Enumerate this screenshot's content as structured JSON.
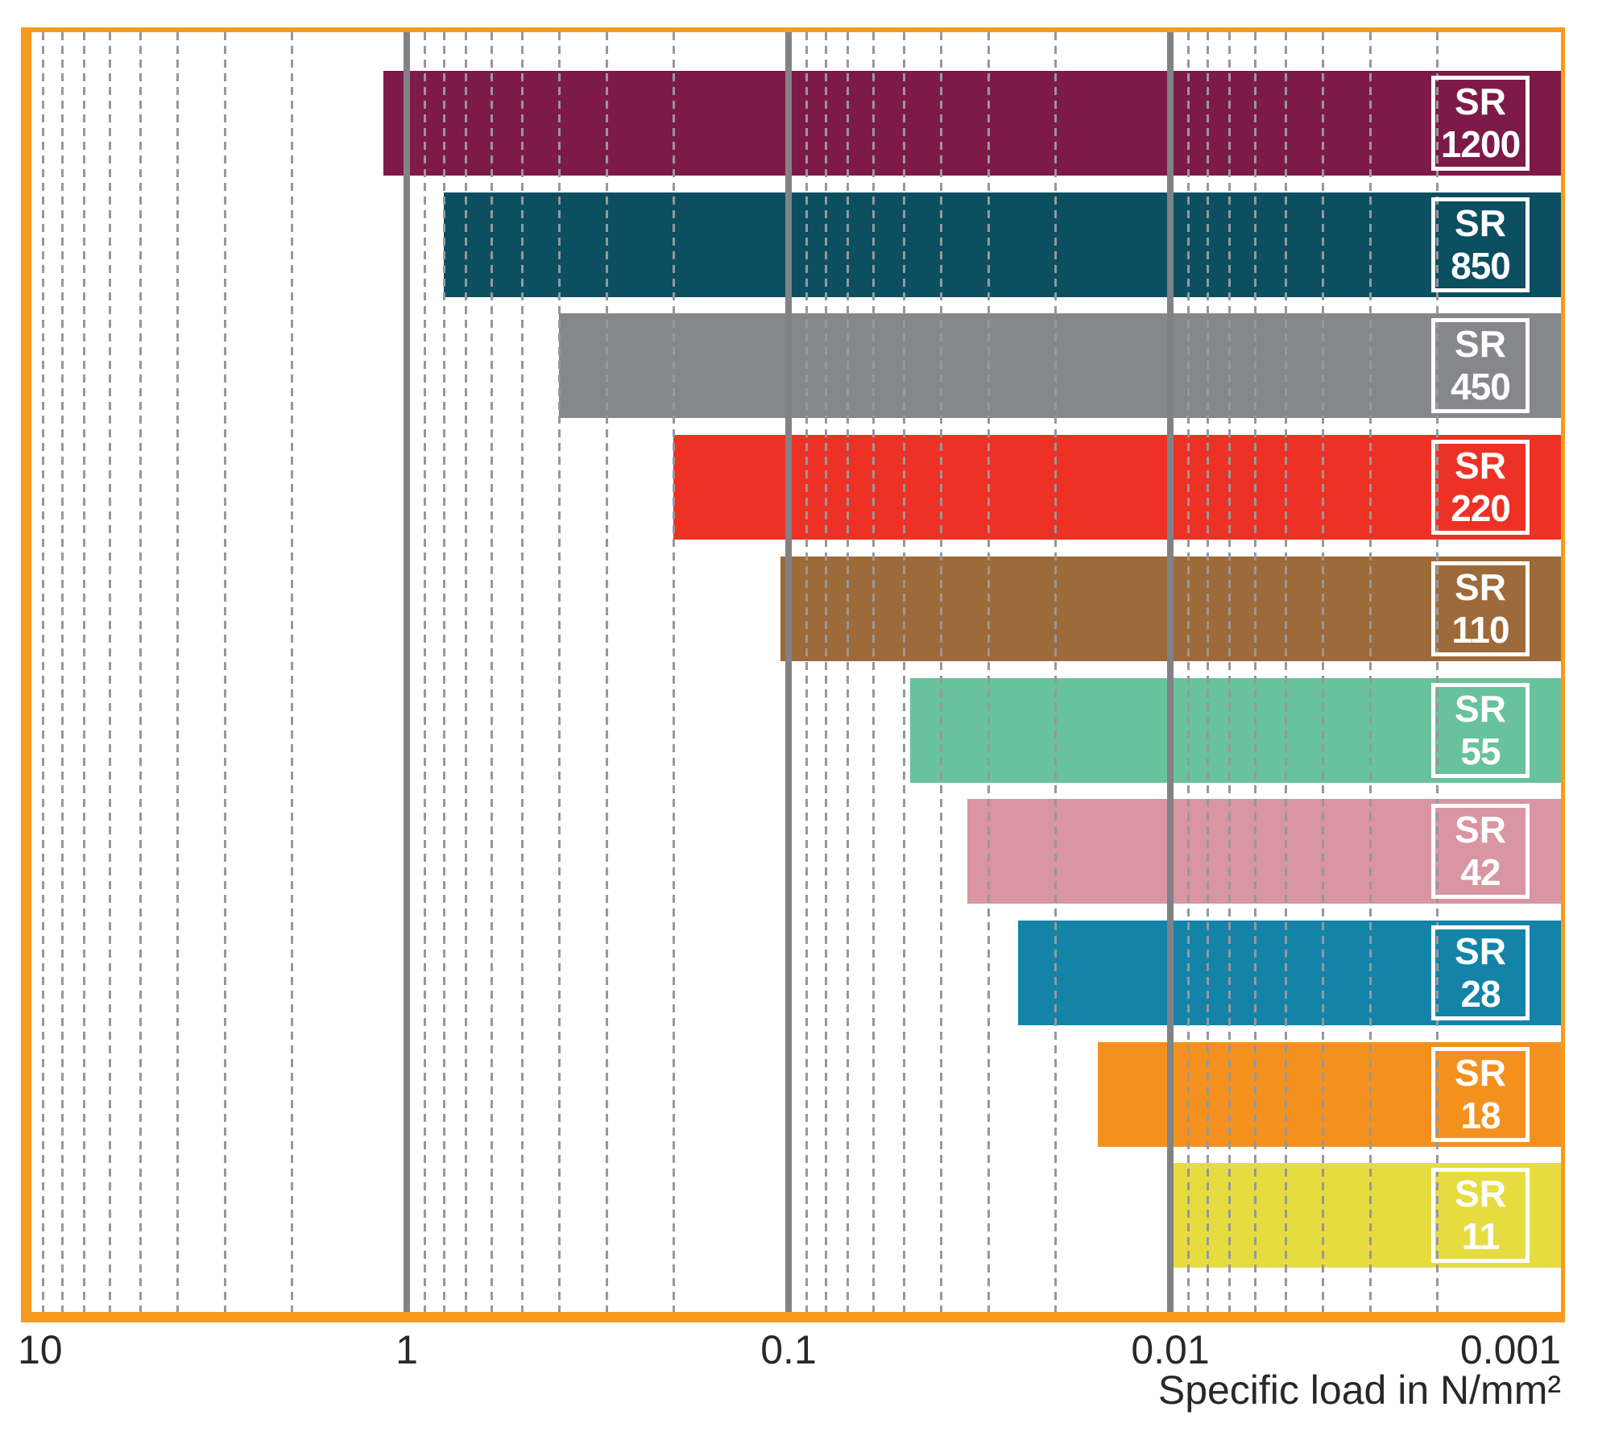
{
  "chart_data": {
    "type": "bar",
    "orientation": "horizontal",
    "title": "",
    "xlabel": "Specific load in N/mm²",
    "x_axis": {
      "scale": "log10",
      "reversed": true,
      "range": [
        10,
        0.001
      ],
      "ticks": [
        {
          "value": 10,
          "label": "10"
        },
        {
          "value": 1,
          "label": "1"
        },
        {
          "value": 0.1,
          "label": "0.1"
        },
        {
          "value": 0.01,
          "label": "0.01"
        },
        {
          "value": 0.001,
          "label": "0.001"
        }
      ],
      "major_gridlines": [
        1,
        0.1,
        0.01
      ],
      "minor_gridlines": "dashed gridlines at multiples 2-9 within each decade",
      "grid": "on",
      "legend": "none"
    },
    "bars_extend_to_axis_end": 0.001,
    "bars": [
      {
        "name": "SR 1200",
        "size": "1200",
        "label_line1": "SR",
        "label_line2": "1200",
        "load_start": 1.15,
        "color": "#7E1A47"
      },
      {
        "name": "SR 850",
        "size": "850",
        "label_line1": "SR",
        "label_line2": "850",
        "load_start": 0.8,
        "color": "#0B4F60"
      },
      {
        "name": "SR 450",
        "size": "450",
        "label_line1": "SR",
        "label_line2": "450",
        "load_start": 0.4,
        "color": "#85878B"
      },
      {
        "name": "SR 220",
        "size": "220",
        "label_line1": "SR",
        "label_line2": "220",
        "load_start": 0.2,
        "color": "#EE3125"
      },
      {
        "name": "SR 110",
        "size": "110",
        "label_line1": "SR",
        "label_line2": "110",
        "load_start": 0.105,
        "color": "#9D6A39"
      },
      {
        "name": "SR 55",
        "size": "55",
        "label_line1": "SR",
        "label_line2": "55",
        "load_start": 0.048,
        "color": "#68C29B"
      },
      {
        "name": "SR 42",
        "size": "42",
        "label_line1": "SR",
        "label_line2": "42",
        "load_start": 0.034,
        "color": "#D995A1"
      },
      {
        "name": "SR 28",
        "size": "28",
        "label_line1": "SR",
        "label_line2": "28",
        "load_start": 0.025,
        "color": "#1383A8"
      },
      {
        "name": "SR 18",
        "size": "18",
        "label_line1": "SR",
        "label_line2": "18",
        "load_start": 0.0155,
        "color": "#F4911E"
      },
      {
        "name": "SR 11",
        "size": "11",
        "label_line1": "SR",
        "label_line2": "11",
        "load_start": 0.01,
        "color": "#E7DC3F"
      }
    ],
    "colors": {
      "frame": "#F79B1E",
      "major_gridline": "#808285",
      "minor_gridline": "#97989B",
      "bar_label_text": "#FFFFFF",
      "axis_text": "#2B2728",
      "background": "#FFFFFF"
    }
  }
}
